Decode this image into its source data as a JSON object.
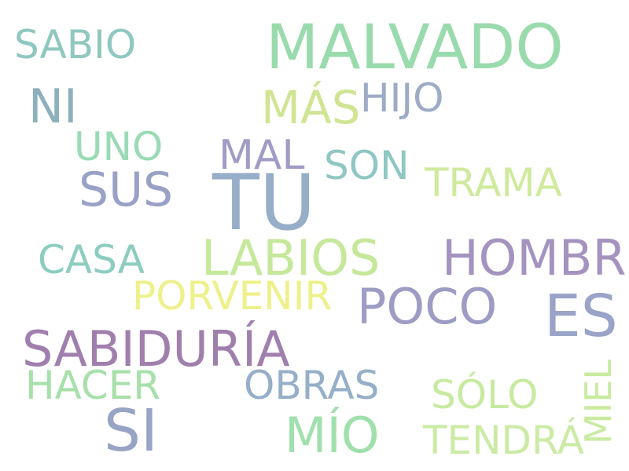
{
  "words": [
    {
      "text": "MALVADO",
      "color": "#9adbad"
    },
    {
      "text": "SABIO",
      "color": "#8fc8c0"
    },
    {
      "text": "NI",
      "color": "#8db0bd"
    },
    {
      "text": "MÁS",
      "color": "#cfe594"
    },
    {
      "text": "HIJO",
      "color": "#9dabc6"
    },
    {
      "text": "UNO",
      "color": "#9adbb5"
    },
    {
      "text": "MAL",
      "color": "#a09cc5"
    },
    {
      "text": "SON",
      "color": "#8ec7c3"
    },
    {
      "text": "SUS",
      "color": "#99a1c5"
    },
    {
      "text": "TU",
      "color": "#97aec9"
    },
    {
      "text": "TRAMA",
      "color": "#cfea9d"
    },
    {
      "text": "CASA",
      "color": "#8ccdc0"
    },
    {
      "text": "LABIOS",
      "color": "#c5e89a"
    },
    {
      "text": "HOMBRE",
      "color": "#a593bf"
    },
    {
      "text": "PORVENIR",
      "color": "#eef18b"
    },
    {
      "text": "POCO",
      "color": "#9c9cc4"
    },
    {
      "text": "ES",
      "color": "#9aa4c8"
    },
    {
      "text": "SABIDURÍA",
      "color": "#a07fad"
    },
    {
      "text": "HACER",
      "color": "#a7e0aa"
    },
    {
      "text": "OBRAS",
      "color": "#96afc8"
    },
    {
      "text": "SÓLO",
      "color": "#c7eaa0"
    },
    {
      "text": "MIEL",
      "color": "#c9eba1"
    },
    {
      "text": "SI",
      "color": "#98a4c4"
    },
    {
      "text": "MÍO",
      "color": "#a0e0ad"
    },
    {
      "text": "TENDRÁ",
      "color": "#cbeba5"
    }
  ]
}
